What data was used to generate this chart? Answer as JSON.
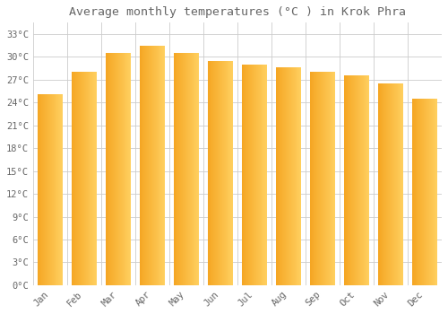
{
  "title": "Average monthly temperatures (°C ) in Krok Phra",
  "months": [
    "Jan",
    "Feb",
    "Mar",
    "Apr",
    "May",
    "Jun",
    "Jul",
    "Aug",
    "Sep",
    "Oct",
    "Nov",
    "Dec"
  ],
  "values": [
    25.1,
    28.1,
    30.5,
    31.5,
    30.5,
    29.5,
    29.0,
    28.6,
    28.1,
    27.6,
    26.5,
    24.5
  ],
  "bar_color_left": "#F5A623",
  "bar_color_right": "#FFD060",
  "background_color": "#ffffff",
  "grid_color": "#cccccc",
  "text_color": "#666666",
  "yticks": [
    0,
    3,
    6,
    9,
    12,
    15,
    18,
    21,
    24,
    27,
    30,
    33
  ],
  "ylim": [
    0,
    34.5
  ],
  "title_fontsize": 9.5,
  "tick_fontsize": 7.5,
  "font_family": "monospace"
}
